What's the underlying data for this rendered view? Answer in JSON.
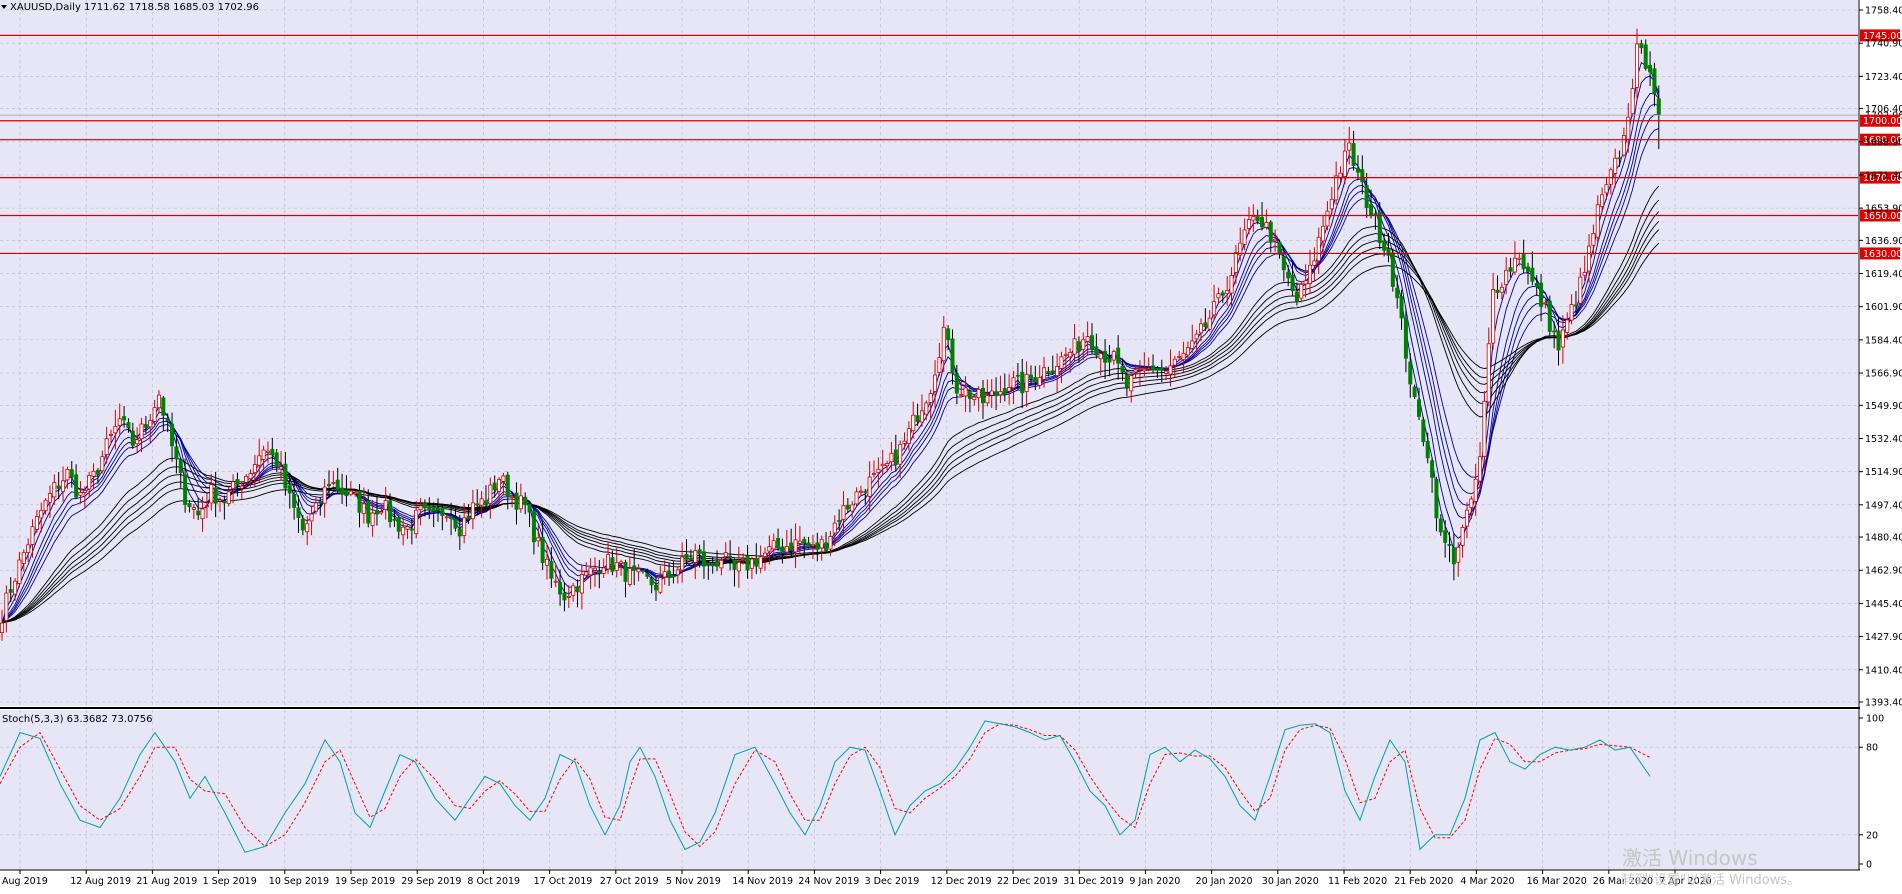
{
  "header": {
    "symbol_line": "XAUUSD,Daily  1711.62 1718.58 1685.03 1702.96",
    "menu_arrow": "triangle-down-icon"
  },
  "subwindow": {
    "label": "Stoch(5,3,3) 63.3682 73.0756",
    "levels": [
      "100",
      "80",
      "20",
      "0"
    ]
  },
  "colors": {
    "background": "#ffffff",
    "plot_background": "#e6e6f7",
    "grid": "#b7b7c8",
    "bull_candle_body": "#ffffff",
    "bull_candle_outline": "#d40000",
    "bear_candle_body": "#008000",
    "level_line": "#d40000",
    "level_label_bg": "#e00000",
    "fast_ma": "#0000a0",
    "slow_ma": "#000000",
    "stoch_main": "#00a0a0",
    "stoch_signal": "#ff0000"
  },
  "watermark": {
    "line1": "激活 Windows",
    "line2": "转到\"设置\"以激活 Windows。"
  },
  "chart_data": {
    "type": "candlestick",
    "symbol": "XAUUSD",
    "timeframe": "Daily",
    "ohlc_last": {
      "open": 1711.62,
      "high": 1718.58,
      "low": 1685.03,
      "close": 1702.96
    },
    "y_ticks": [
      "1758.40",
      "1740.90",
      "1723.40",
      "1706.40",
      "1688.90",
      "1671.40",
      "1653.90",
      "1636.90",
      "1619.40",
      "1601.90",
      "1584.40",
      "1566.90",
      "1549.90",
      "1532.40",
      "1514.90",
      "1497.40",
      "1480.40",
      "1462.90",
      "1445.40",
      "1427.90",
      "1410.40",
      "1393.40"
    ],
    "ylim": [
      1393.4,
      1758.4
    ],
    "x_ticks": [
      "Aug 2019",
      "12 Aug 2019",
      "21 Aug 2019",
      "1 Sep 2019",
      "10 Sep 2019",
      "19 Sep 2019",
      "29 Sep 2019",
      "8 Oct 2019",
      "17 Oct 2019",
      "27 Oct 2019",
      "5 Nov 2019",
      "14 Nov 2019",
      "24 Nov 2019",
      "3 Dec 2019",
      "12 Dec 2019",
      "22 Dec 2019",
      "31 Dec 2019",
      "9 Jan 2020",
      "20 Jan 2020",
      "30 Jan 2020",
      "11 Feb 2020",
      "21 Feb 2020",
      "4 Mar 2020",
      "16 Mar 2020",
      "26 Mar 2020",
      "7 Apr 2020"
    ],
    "levels": [
      "1745.00",
      "1700.00",
      "1690.00",
      "1670.00",
      "1650.00",
      "1630.00"
    ],
    "current_price": "1702.96",
    "close_path": [
      [
        0,
        1440
      ],
      [
        3,
        1460
      ],
      [
        6,
        1478
      ],
      [
        9,
        1494
      ],
      [
        12,
        1506
      ],
      [
        15,
        1514
      ],
      [
        18,
        1502
      ],
      [
        21,
        1512
      ],
      [
        24,
        1528
      ],
      [
        27,
        1542
      ],
      [
        30,
        1530
      ],
      [
        33,
        1540
      ],
      [
        36,
        1556
      ],
      [
        39,
        1528
      ],
      [
        42,
        1502
      ],
      [
        45,
        1492
      ],
      [
        48,
        1504
      ],
      [
        51,
        1500
      ],
      [
        54,
        1508
      ],
      [
        57,
        1516
      ],
      [
        60,
        1528
      ],
      [
        63,
        1520
      ],
      [
        66,
        1500
      ],
      [
        69,
        1484
      ],
      [
        72,
        1494
      ],
      [
        75,
        1510
      ],
      [
        78,
        1505
      ],
      [
        81,
        1500
      ],
      [
        84,
        1492
      ],
      [
        87,
        1498
      ],
      [
        90,
        1488
      ],
      [
        93,
        1485
      ],
      [
        96,
        1493
      ],
      [
        99,
        1490
      ],
      [
        102,
        1496
      ],
      [
        105,
        1486
      ],
      [
        108,
        1496
      ],
      [
        111,
        1500
      ],
      [
        114,
        1512
      ],
      [
        117,
        1502
      ],
      [
        120,
        1496
      ],
      [
        123,
        1476
      ],
      [
        126,
        1458
      ],
      [
        129,
        1450
      ],
      [
        132,
        1456
      ],
      [
        135,
        1462
      ],
      [
        138,
        1468
      ],
      [
        141,
        1465
      ],
      [
        144,
        1460
      ],
      [
        147,
        1458
      ],
      [
        150,
        1455
      ],
      [
        153,
        1460
      ],
      [
        156,
        1466
      ],
      [
        159,
        1472
      ],
      [
        162,
        1464
      ],
      [
        165,
        1470
      ],
      [
        168,
        1462
      ],
      [
        171,
        1466
      ],
      [
        174,
        1470
      ],
      [
        177,
        1474
      ],
      [
        180,
        1476
      ],
      [
        183,
        1478
      ],
      [
        186,
        1474
      ],
      [
        189,
        1478
      ],
      [
        192,
        1492
      ],
      [
        195,
        1500
      ],
      [
        198,
        1508
      ],
      [
        201,
        1512
      ],
      [
        204,
        1520
      ],
      [
        207,
        1530
      ],
      [
        210,
        1546
      ],
      [
        213,
        1560
      ],
      [
        216,
        1590
      ],
      [
        219,
        1560
      ],
      [
        222,
        1556
      ],
      [
        225,
        1552
      ],
      [
        228,
        1556
      ],
      [
        231,
        1562
      ],
      [
        234,
        1560
      ],
      [
        237,
        1566
      ],
      [
        240,
        1570
      ],
      [
        243,
        1574
      ],
      [
        246,
        1580
      ],
      [
        249,
        1588
      ],
      [
        252,
        1578
      ],
      [
        255,
        1574
      ],
      [
        258,
        1560
      ],
      [
        261,
        1566
      ],
      [
        264,
        1570
      ],
      [
        267,
        1568
      ],
      [
        270,
        1574
      ],
      [
        273,
        1580
      ],
      [
        276,
        1592
      ],
      [
        279,
        1604
      ],
      [
        282,
        1620
      ],
      [
        285,
        1640
      ],
      [
        288,
        1650
      ],
      [
        291,
        1640
      ],
      [
        294,
        1620
      ],
      [
        297,
        1605
      ],
      [
        300,
        1620
      ],
      [
        303,
        1645
      ],
      [
        306,
        1670
      ],
      [
        309,
        1685
      ],
      [
        312,
        1664
      ],
      [
        315,
        1646
      ],
      [
        318,
        1630
      ],
      [
        321,
        1592
      ],
      [
        324,
        1550
      ],
      [
        327,
        1526
      ],
      [
        330,
        1480
      ],
      [
        333,
        1470
      ],
      [
        336,
        1490
      ],
      [
        339,
        1520
      ],
      [
        342,
        1610
      ],
      [
        345,
        1620
      ],
      [
        348,
        1630
      ],
      [
        351,
        1614
      ],
      [
        354,
        1600
      ],
      [
        357,
        1580
      ],
      [
        360,
        1600
      ],
      [
        363,
        1620
      ],
      [
        366,
        1652
      ],
      [
        369,
        1670
      ],
      [
        372,
        1690
      ],
      [
        375,
        1736
      ],
      [
        378,
        1730
      ],
      [
        380,
        1703
      ]
    ],
    "stoch_k_path": [
      [
        0,
        60
      ],
      [
        4,
        90
      ],
      [
        8,
        86
      ],
      [
        12,
        55
      ],
      [
        16,
        30
      ],
      [
        20,
        25
      ],
      [
        24,
        45
      ],
      [
        28,
        75
      ],
      [
        31,
        90
      ],
      [
        35,
        70
      ],
      [
        38,
        45
      ],
      [
        41,
        60
      ],
      [
        45,
        35
      ],
      [
        49,
        8
      ],
      [
        53,
        12
      ],
      [
        57,
        35
      ],
      [
        61,
        55
      ],
      [
        65,
        85
      ],
      [
        68,
        70
      ],
      [
        71,
        35
      ],
      [
        74,
        25
      ],
      [
        77,
        50
      ],
      [
        80,
        75
      ],
      [
        83,
        70
      ],
      [
        87,
        45
      ],
      [
        91,
        30
      ],
      [
        94,
        45
      ],
      [
        97,
        60
      ],
      [
        100,
        55
      ],
      [
        103,
        40
      ],
      [
        106,
        30
      ],
      [
        109,
        45
      ],
      [
        112,
        75
      ],
      [
        115,
        70
      ],
      [
        118,
        40
      ],
      [
        121,
        20
      ],
      [
        124,
        40
      ],
      [
        126,
        70
      ],
      [
        128,
        80
      ],
      [
        131,
        60
      ],
      [
        134,
        30
      ],
      [
        137,
        10
      ],
      [
        140,
        15
      ],
      [
        143,
        35
      ],
      [
        147,
        75
      ],
      [
        151,
        80
      ],
      [
        155,
        55
      ],
      [
        158,
        35
      ],
      [
        161,
        20
      ],
      [
        164,
        40
      ],
      [
        167,
        70
      ],
      [
        170,
        80
      ],
      [
        173,
        78
      ],
      [
        176,
        50
      ],
      [
        179,
        20
      ],
      [
        182,
        40
      ],
      [
        185,
        50
      ],
      [
        188,
        55
      ],
      [
        191,
        65
      ],
      [
        194,
        80
      ],
      [
        197,
        98
      ],
      [
        200,
        96
      ],
      [
        203,
        94
      ],
      [
        206,
        90
      ],
      [
        209,
        85
      ],
      [
        212,
        88
      ],
      [
        215,
        70
      ],
      [
        218,
        50
      ],
      [
        221,
        40
      ],
      [
        224,
        20
      ],
      [
        227,
        30
      ],
      [
        230,
        75
      ],
      [
        233,
        80
      ],
      [
        236,
        70
      ],
      [
        239,
        78
      ],
      [
        242,
        72
      ],
      [
        245,
        60
      ],
      [
        248,
        40
      ],
      [
        251,
        30
      ],
      [
        254,
        60
      ],
      [
        257,
        92
      ],
      [
        260,
        95
      ],
      [
        263,
        96
      ],
      [
        266,
        90
      ],
      [
        269,
        50
      ],
      [
        272,
        30
      ],
      [
        275,
        60
      ],
      [
        278,
        85
      ],
      [
        281,
        70
      ],
      [
        284,
        10
      ],
      [
        287,
        20
      ],
      [
        290,
        20
      ],
      [
        293,
        45
      ],
      [
        296,
        85
      ],
      [
        299,
        90
      ],
      [
        302,
        70
      ],
      [
        305,
        65
      ],
      [
        308,
        75
      ],
      [
        311,
        80
      ],
      [
        314,
        78
      ],
      [
        317,
        80
      ],
      [
        320,
        85
      ],
      [
        323,
        78
      ],
      [
        326,
        80
      ],
      [
        330,
        60
      ]
    ],
    "stoch_d_path": [
      [
        0,
        55
      ],
      [
        4,
        80
      ],
      [
        8,
        90
      ],
      [
        12,
        65
      ],
      [
        16,
        40
      ],
      [
        20,
        30
      ],
      [
        24,
        38
      ],
      [
        28,
        60
      ],
      [
        31,
        80
      ],
      [
        35,
        80
      ],
      [
        38,
        58
      ],
      [
        41,
        50
      ],
      [
        45,
        48
      ],
      [
        49,
        25
      ],
      [
        53,
        12
      ],
      [
        57,
        20
      ],
      [
        61,
        42
      ],
      [
        65,
        70
      ],
      [
        68,
        78
      ],
      [
        71,
        55
      ],
      [
        74,
        32
      ],
      [
        77,
        38
      ],
      [
        80,
        60
      ],
      [
        83,
        72
      ],
      [
        87,
        58
      ],
      [
        91,
        40
      ],
      [
        94,
        38
      ],
      [
        97,
        50
      ],
      [
        100,
        57
      ],
      [
        103,
        48
      ],
      [
        106,
        36
      ],
      [
        109,
        36
      ],
      [
        112,
        58
      ],
      [
        115,
        72
      ],
      [
        118,
        58
      ],
      [
        121,
        32
      ],
      [
        124,
        30
      ],
      [
        126,
        52
      ],
      [
        128,
        72
      ],
      [
        131,
        72
      ],
      [
        134,
        48
      ],
      [
        137,
        22
      ],
      [
        140,
        12
      ],
      [
        143,
        22
      ],
      [
        147,
        55
      ],
      [
        151,
        78
      ],
      [
        155,
        70
      ],
      [
        158,
        48
      ],
      [
        161,
        30
      ],
      [
        164,
        30
      ],
      [
        167,
        55
      ],
      [
        170,
        74
      ],
      [
        173,
        80
      ],
      [
        176,
        66
      ],
      [
        179,
        38
      ],
      [
        182,
        35
      ],
      [
        185,
        45
      ],
      [
        188,
        52
      ],
      [
        191,
        60
      ],
      [
        194,
        72
      ],
      [
        197,
        90
      ],
      [
        200,
        96
      ],
      [
        203,
        95
      ],
      [
        206,
        92
      ],
      [
        209,
        88
      ],
      [
        212,
        88
      ],
      [
        215,
        78
      ],
      [
        218,
        60
      ],
      [
        221,
        45
      ],
      [
        224,
        32
      ],
      [
        227,
        25
      ],
      [
        230,
        55
      ],
      [
        233,
        75
      ],
      [
        236,
        76
      ],
      [
        239,
        74
      ],
      [
        242,
        74
      ],
      [
        245,
        66
      ],
      [
        248,
        50
      ],
      [
        251,
        36
      ],
      [
        254,
        45
      ],
      [
        257,
        78
      ],
      [
        260,
        92
      ],
      [
        263,
        95
      ],
      [
        266,
        93
      ],
      [
        269,
        72
      ],
      [
        272,
        42
      ],
      [
        275,
        45
      ],
      [
        278,
        70
      ],
      [
        281,
        78
      ],
      [
        284,
        38
      ],
      [
        287,
        18
      ],
      [
        290,
        18
      ],
      [
        293,
        30
      ],
      [
        296,
        65
      ],
      [
        299,
        86
      ],
      [
        302,
        82
      ],
      [
        305,
        70
      ],
      [
        308,
        70
      ],
      [
        311,
        76
      ],
      [
        314,
        78
      ],
      [
        317,
        79
      ],
      [
        320,
        82
      ],
      [
        323,
        81
      ],
      [
        326,
        80
      ],
      [
        330,
        73
      ]
    ]
  }
}
